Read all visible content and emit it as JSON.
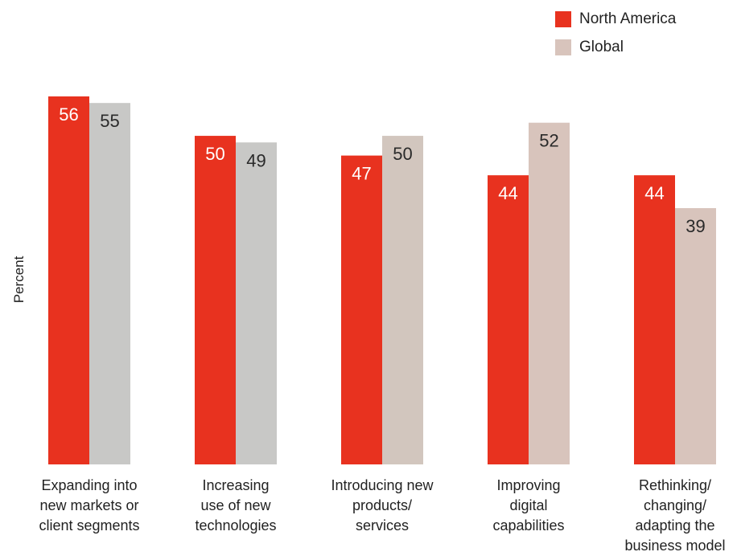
{
  "chart_data": {
    "type": "bar",
    "ylabel": "Percent",
    "xlabel": "",
    "ylim": [
      0,
      56
    ],
    "grid": false,
    "legend_position": "top-right",
    "categories": [
      "Expanding into\nnew markets or\nclient segments",
      "Increasing\nuse of new\ntechnologies",
      "Introducing new\nproducts/\nservices",
      "Improving\ndigital\ncapabilities",
      "Rethinking/\nchanging/\nadapting the\nbusiness model"
    ],
    "series": [
      {
        "name": "North America",
        "values": [
          56,
          50,
          47,
          44,
          44
        ],
        "color": "#e8321f",
        "label_color": "#ffffff"
      },
      {
        "name": "Global",
        "values": [
          55,
          49,
          50,
          52,
          39
        ],
        "color_by_category": [
          "#c8c8c6",
          "#c8c8c6",
          "#d2c6be",
          "#d8c4bc",
          "#d8c4bc"
        ],
        "label_color": "#2a2a2a"
      }
    ]
  }
}
